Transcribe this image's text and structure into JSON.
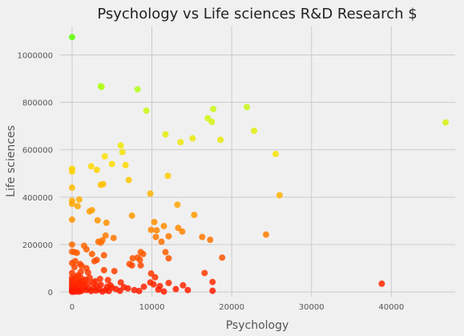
{
  "chart_data": {
    "type": "scatter",
    "title": "Psychology vs Life sciences R&D Research $",
    "xlabel": "Psychology",
    "ylabel": "Life sciences",
    "xlim": [
      -1500,
      48000
    ],
    "ylim": [
      -20000,
      1120000
    ],
    "xticks": [
      0,
      10000,
      20000,
      30000,
      40000
    ],
    "yticks": [
      0,
      200000,
      400000,
      600000,
      800000,
      1000000
    ],
    "grid": true,
    "colormap": [
      "#ff1a00",
      "#ff8c00",
      "#ffe000",
      "#b8ff1a",
      "#4cff00"
    ],
    "colors": {
      "background": "#f0f0f0",
      "grid": "#cbcbcb"
    },
    "points": [
      [
        0,
        1075000
      ],
      [
        3600,
        868000
      ],
      [
        3700,
        865000
      ],
      [
        8200,
        855000
      ],
      [
        9300,
        765000
      ],
      [
        17700,
        772000
      ],
      [
        21900,
        780000
      ],
      [
        17000,
        733000
      ],
      [
        17500,
        718000
      ],
      [
        46800,
        715000
      ],
      [
        22800,
        680000
      ],
      [
        11700,
        665000
      ],
      [
        18600,
        642000
      ],
      [
        13600,
        632000
      ],
      [
        15100,
        648000
      ],
      [
        6100,
        618000
      ],
      [
        6300,
        590000
      ],
      [
        4100,
        572000
      ],
      [
        25500,
        582000
      ],
      [
        5000,
        540000
      ],
      [
        6700,
        535000
      ],
      [
        2400,
        530000
      ],
      [
        3100,
        515000
      ],
      [
        0,
        520000
      ],
      [
        0,
        508000
      ],
      [
        12000,
        490000
      ],
      [
        7100,
        472000
      ],
      [
        3900,
        455000
      ],
      [
        3600,
        452000
      ],
      [
        0,
        440000
      ],
      [
        9800,
        415000
      ],
      [
        26000,
        408000
      ],
      [
        900,
        390000
      ],
      [
        0,
        385000
      ],
      [
        0,
        372000
      ],
      [
        700,
        362000
      ],
      [
        2500,
        345000
      ],
      [
        2200,
        340000
      ],
      [
        13200,
        368000
      ],
      [
        15300,
        325000
      ],
      [
        7500,
        322000
      ],
      [
        0,
        305000
      ],
      [
        3200,
        302000
      ],
      [
        4300,
        292000
      ],
      [
        10300,
        295000
      ],
      [
        11500,
        278000
      ],
      [
        10600,
        260000
      ],
      [
        13300,
        270000
      ],
      [
        13800,
        255000
      ],
      [
        9900,
        262000
      ],
      [
        12100,
        235000
      ],
      [
        16300,
        232000
      ],
      [
        10500,
        232000
      ],
      [
        17300,
        220000
      ],
      [
        11200,
        212000
      ],
      [
        24300,
        242000
      ],
      [
        4200,
        238000
      ],
      [
        3800,
        218000
      ],
      [
        3300,
        212000
      ],
      [
        3600,
        208000
      ],
      [
        5200,
        228000
      ],
      [
        0,
        200000
      ],
      [
        1500,
        195000
      ],
      [
        1800,
        180000
      ],
      [
        0,
        170000
      ],
      [
        300,
        168000
      ],
      [
        600,
        165000
      ],
      [
        2500,
        160000
      ],
      [
        8600,
        168000
      ],
      [
        8200,
        145000
      ],
      [
        8500,
        135000
      ],
      [
        8900,
        160000
      ],
      [
        7600,
        142000
      ],
      [
        11700,
        168000
      ],
      [
        12100,
        142000
      ],
      [
        18800,
        145000
      ],
      [
        4000,
        155000
      ],
      [
        3100,
        135000
      ],
      [
        2800,
        130000
      ],
      [
        400,
        130000
      ],
      [
        0,
        122000
      ],
      [
        1000,
        118000
      ],
      [
        7200,
        118000
      ],
      [
        7500,
        112000
      ],
      [
        8600,
        112000
      ],
      [
        1200,
        110000
      ],
      [
        300,
        105000
      ],
      [
        1800,
        100000
      ],
      [
        4000,
        92000
      ],
      [
        5300,
        88000
      ],
      [
        1100,
        85000
      ],
      [
        2000,
        82000
      ],
      [
        0,
        80000
      ],
      [
        9900,
        78000
      ],
      [
        10400,
        62000
      ],
      [
        16600,
        80000
      ],
      [
        17600,
        42000
      ],
      [
        11000,
        25000
      ],
      [
        12100,
        38000
      ],
      [
        13900,
        28000
      ],
      [
        17600,
        5000
      ],
      [
        38800,
        35000
      ],
      [
        9800,
        40000
      ],
      [
        10200,
        32000
      ],
      [
        6100,
        40000
      ],
      [
        4800,
        28000
      ],
      [
        4400,
        22000
      ],
      [
        5000,
        18000
      ],
      [
        3600,
        30000
      ],
      [
        3100,
        25000
      ],
      [
        2600,
        40000
      ],
      [
        2000,
        35000
      ],
      [
        1500,
        45000
      ],
      [
        1100,
        60000
      ],
      [
        900,
        50000
      ],
      [
        700,
        40000
      ],
      [
        500,
        30000
      ],
      [
        300,
        25000
      ],
      [
        0,
        20000
      ],
      [
        0,
        10000
      ],
      [
        0,
        5000
      ],
      [
        200,
        15000
      ],
      [
        400,
        8000
      ],
      [
        600,
        12000
      ],
      [
        800,
        20000
      ],
      [
        1000,
        10000
      ],
      [
        1200,
        5000
      ],
      [
        1400,
        15000
      ],
      [
        1600,
        25000
      ],
      [
        1800,
        8000
      ],
      [
        2100,
        12000
      ],
      [
        2400,
        4000
      ],
      [
        2700,
        18000
      ],
      [
        3000,
        6000
      ],
      [
        3400,
        10000
      ],
      [
        3800,
        2000
      ],
      [
        4200,
        8000
      ],
      [
        4600,
        4000
      ],
      [
        5500,
        12000
      ],
      [
        6000,
        5000
      ],
      [
        6500,
        20000
      ],
      [
        7000,
        15000
      ],
      [
        7800,
        8000
      ],
      [
        8400,
        4000
      ],
      [
        9000,
        22000
      ],
      [
        10800,
        10000
      ],
      [
        11500,
        2000
      ],
      [
        13000,
        12000
      ],
      [
        14500,
        8000
      ],
      [
        0,
        60000
      ],
      [
        0,
        50000
      ],
      [
        0,
        40000
      ],
      [
        0,
        30000
      ],
      [
        0,
        1000
      ],
      [
        150,
        48000
      ],
      [
        350,
        55000
      ],
      [
        550,
        65000
      ],
      [
        750,
        70000
      ],
      [
        950,
        38000
      ],
      [
        1300,
        32000
      ],
      [
        1700,
        52000
      ],
      [
        2200,
        60000
      ],
      [
        2900,
        45000
      ],
      [
        3500,
        55000
      ],
      [
        4500,
        50000
      ],
      [
        500,
        2000
      ],
      [
        700,
        6000
      ],
      [
        900,
        1500
      ],
      [
        100,
        3000
      ],
      [
        250,
        1500
      ]
    ]
  }
}
